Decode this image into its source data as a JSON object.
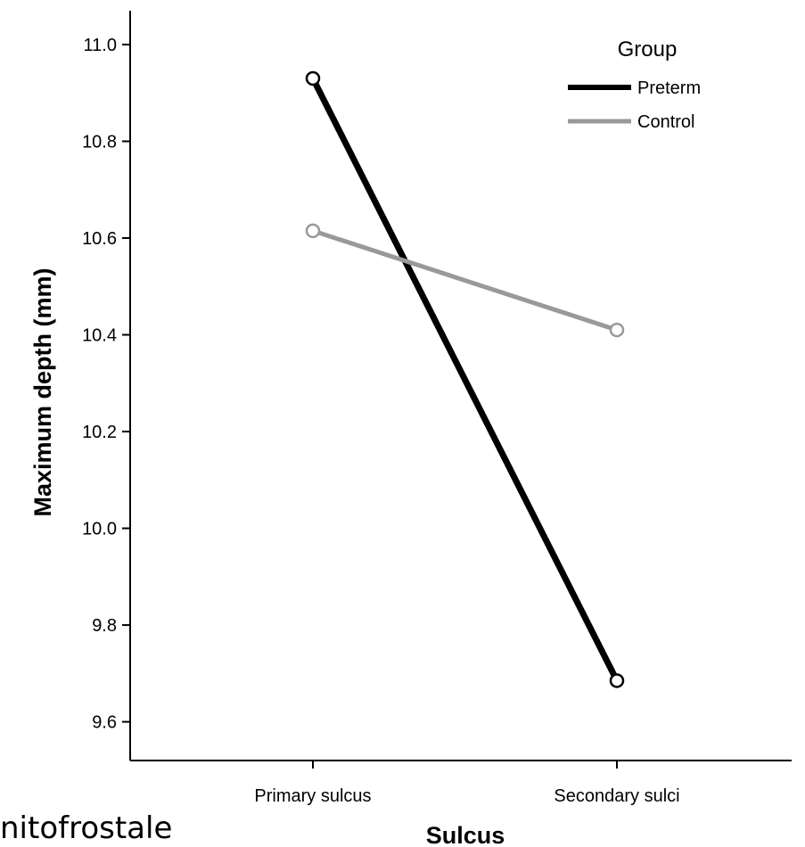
{
  "chart_data": {
    "type": "line",
    "title": "",
    "xlabel": "Sulcus",
    "ylabel": "Maximum depth (mm)",
    "categories": [
      "Primary sulcus",
      "Secondary sulci"
    ],
    "ylim": [
      9.52,
      11.07
    ],
    "yticks": [
      "9.6",
      "9.8",
      "10.0",
      "10.2",
      "10.4",
      "10.6",
      "10.8",
      "11.0"
    ],
    "grid": false,
    "legend": {
      "title": "Group",
      "position": "top-right"
    },
    "series": [
      {
        "name": "Preterm",
        "values": [
          10.93,
          9.685
        ],
        "color": "#000000"
      },
      {
        "name": "Control",
        "values": [
          10.615,
          10.41
        ],
        "color": "#999999"
      }
    ]
  },
  "footer_fragment": "nitofrostale"
}
